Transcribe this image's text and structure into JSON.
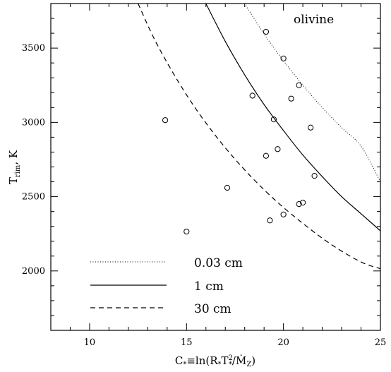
{
  "chart_data": {
    "type": "line",
    "title": "",
    "panel_label": "olivine",
    "xlabel": "C*≡ln(R*T*²/Ṁz)",
    "xlabel_parts": {
      "main": "C",
      "sub_star": "*",
      "rest": "≡ln(R",
      "sub_star2": "*",
      "T": "T",
      "sup": "2",
      "sub_star3": "*",
      "slash": "/",
      "mdot": "Ṁ",
      "sub_z": "Z",
      "close": ")"
    },
    "ylabel": "Trim, K",
    "ylabel_parts": {
      "main": "T",
      "sub": "rim",
      "rest": ", K"
    },
    "xlim": [
      8,
      25
    ],
    "ylim": [
      1600,
      3800
    ],
    "x_ticks": [
      10,
      15,
      20,
      25
    ],
    "x_tick_labels": [
      "10",
      "15",
      "20",
      "25"
    ],
    "y_ticks": [
      2000,
      2500,
      3000,
      3500
    ],
    "y_tick_labels": [
      "2000",
      "2500",
      "3000",
      "3500"
    ],
    "grid": false,
    "legend_position": "bottom-left",
    "series": [
      {
        "name": "0.03 cm",
        "style": "dotted",
        "x": [
          18.0,
          19.0,
          20.0,
          21.0,
          22.0,
          23.0,
          24.0,
          25.0
        ],
        "y": [
          3800,
          3595,
          3415,
          3250,
          3100,
          2965,
          2840,
          2600
        ]
      },
      {
        "name": "1 cm",
        "style": "solid",
        "x": [
          16.0,
          17.0,
          18.0,
          19.0,
          20.0,
          21.0,
          22.0,
          23.0,
          24.0,
          25.0
        ],
        "y": [
          3800,
          3545,
          3320,
          3120,
          2945,
          2780,
          2635,
          2500,
          2385,
          2270
        ]
      },
      {
        "name": "30 cm",
        "style": "dashed",
        "x": [
          12.5,
          13.5,
          15.0,
          16.5,
          18.0,
          19.5,
          21.0,
          22.5,
          24.0,
          25.0
        ],
        "y": [
          3800,
          3520,
          3185,
          2910,
          2680,
          2485,
          2320,
          2175,
          2060,
          2015
        ]
      }
    ],
    "points": [
      {
        "x": 13.9,
        "y": 3015
      },
      {
        "x": 15.0,
        "y": 2265
      },
      {
        "x": 17.1,
        "y": 2560
      },
      {
        "x": 18.4,
        "y": 3180
      },
      {
        "x": 19.1,
        "y": 3610
      },
      {
        "x": 19.1,
        "y": 2775
      },
      {
        "x": 19.3,
        "y": 2340
      },
      {
        "x": 19.5,
        "y": 3020
      },
      {
        "x": 19.7,
        "y": 2820
      },
      {
        "x": 20.0,
        "y": 3430
      },
      {
        "x": 20.0,
        "y": 2380
      },
      {
        "x": 20.4,
        "y": 3160
      },
      {
        "x": 20.8,
        "y": 3250
      },
      {
        "x": 20.8,
        "y": 2450
      },
      {
        "x": 21.0,
        "y": 2460
      },
      {
        "x": 21.4,
        "y": 2965
      },
      {
        "x": 21.6,
        "y": 2640
      }
    ]
  }
}
